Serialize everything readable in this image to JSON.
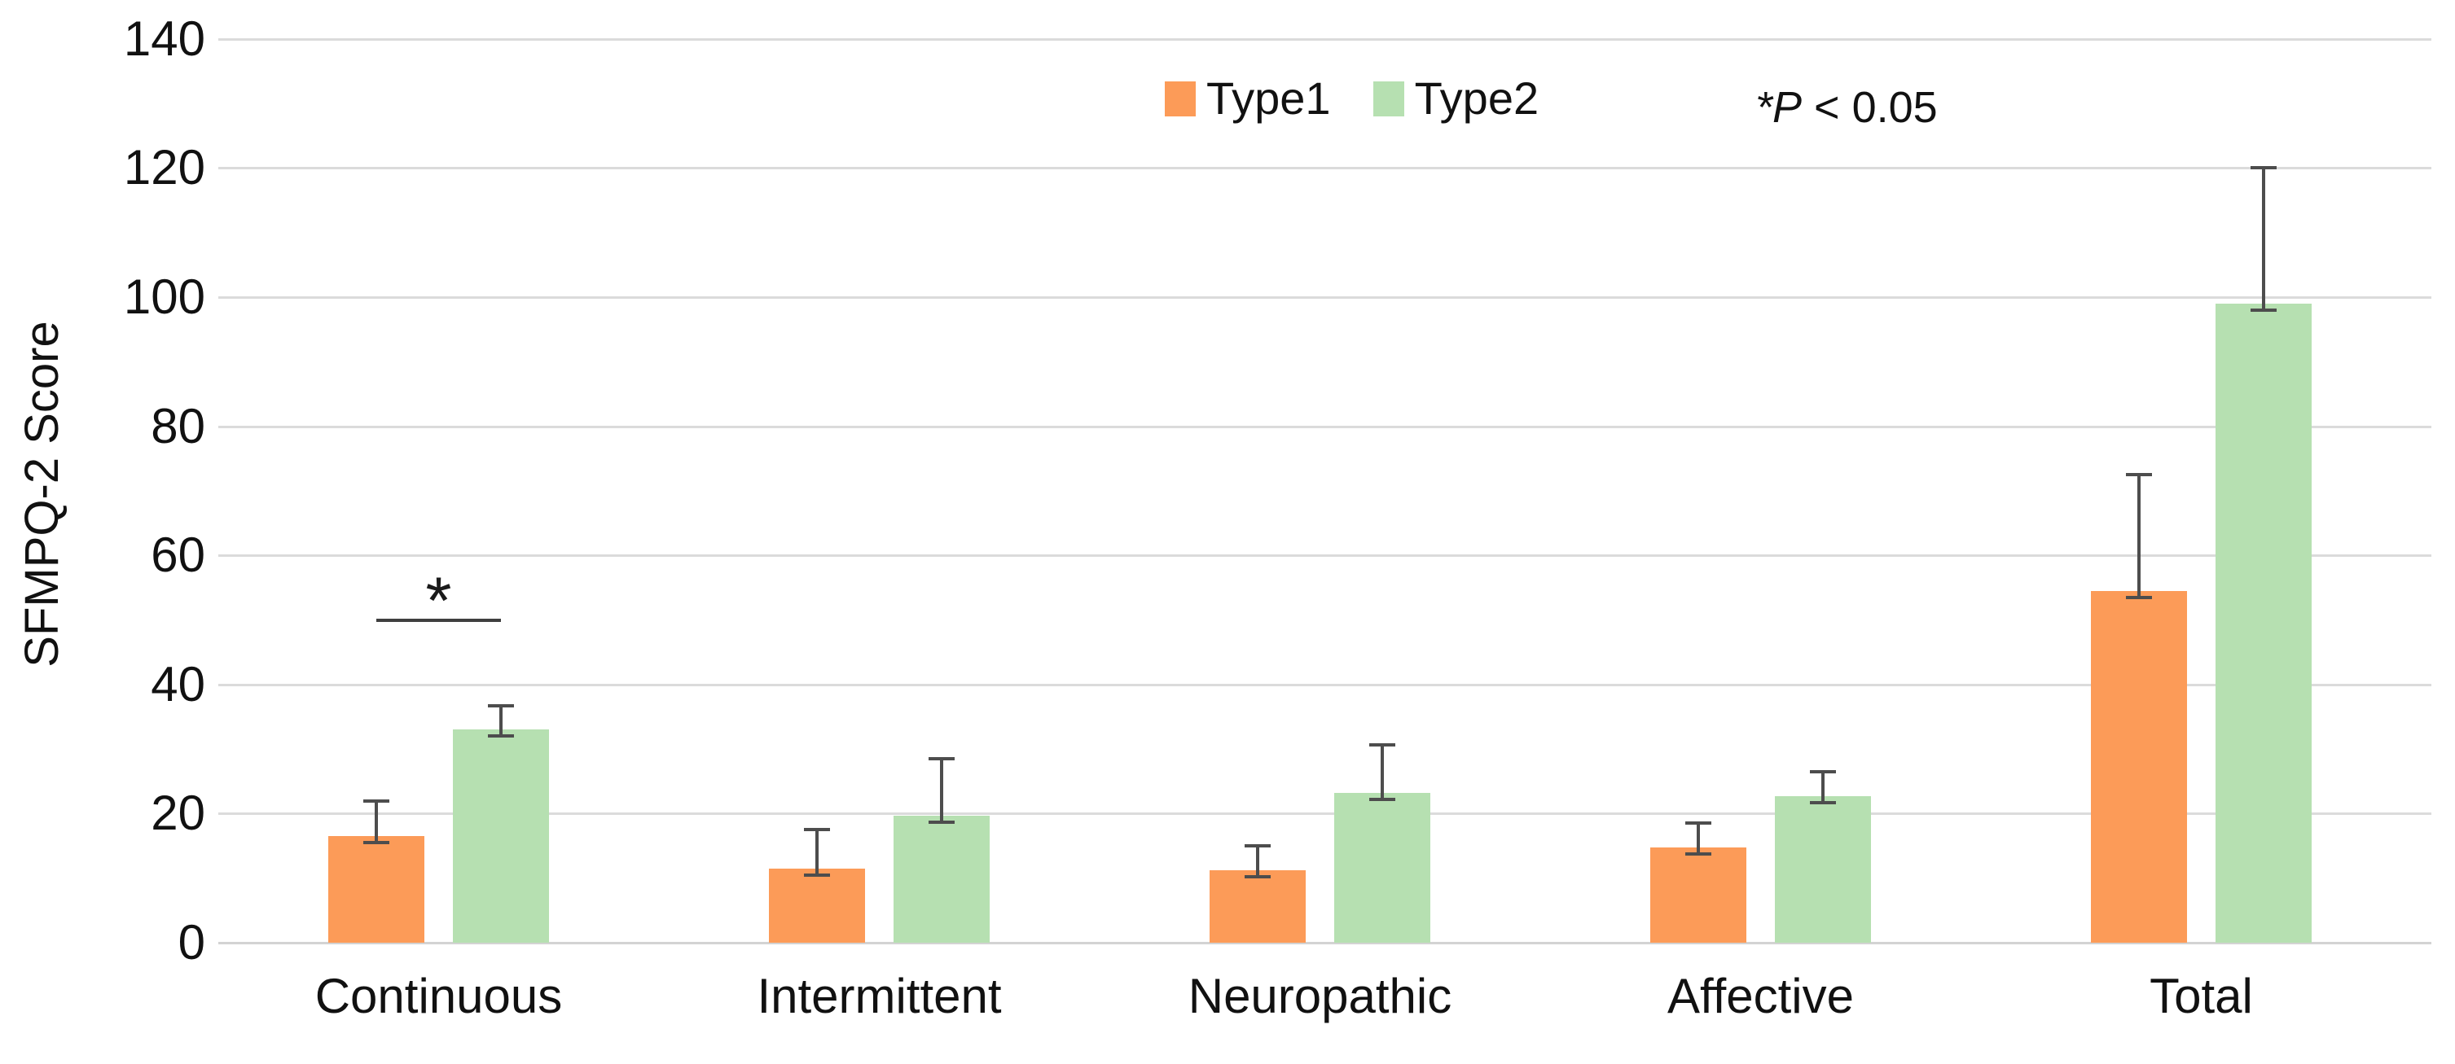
{
  "chart_data": {
    "type": "bar",
    "title": "",
    "categories": [
      "Continuous",
      "Intermittent",
      "Neuropathic",
      "Affective",
      "Total"
    ],
    "series": [
      {
        "name": "Type1",
        "color": "#FC9B58",
        "values": [
          16.5,
          11.5,
          11.2,
          14.7,
          54.5
        ],
        "errors_plus": [
          5.5,
          6.0,
          3.8,
          3.8,
          18.0
        ],
        "errors_minus": [
          1.0,
          1.0,
          1.0,
          1.0,
          1.0
        ]
      },
      {
        "name": "Type2",
        "color": "#B6E0B1",
        "values": [
          33.0,
          19.7,
          23.2,
          22.7,
          99.0
        ],
        "errors_plus": [
          3.7,
          8.8,
          7.5,
          3.8,
          21.0
        ],
        "errors_minus": [
          1.0,
          1.0,
          1.0,
          1.0,
          1.0
        ]
      }
    ],
    "xlabel": "",
    "ylabel": "SFMPQ-2 Score",
    "ylim": [
      0,
      140
    ],
    "yticks": [
      0,
      20,
      40,
      60,
      80,
      100,
      120,
      140
    ],
    "grid": true,
    "legend_position": "top-center",
    "significance": {
      "category": "Continuous",
      "between": [
        "Type1",
        "Type2"
      ],
      "marker": "*",
      "line_y_value": 50
    },
    "annotation": "*P < 0.05"
  },
  "legend": {
    "items": [
      {
        "label": "Type1",
        "color": "#FC9B58"
      },
      {
        "label": "Type2",
        "color": "#B6E0B1"
      }
    ]
  },
  "annotation": {
    "italic_part": "*P",
    "rest": " < 0.05"
  },
  "axes": {
    "y_title": "SFMPQ-2 Score"
  },
  "colors": {
    "gridline": "#DBDBDB",
    "axis_line": "#D3D3D3",
    "error_bar": "#4D4D4D",
    "sig_line": "#3F3F3F",
    "text": "#111111"
  }
}
